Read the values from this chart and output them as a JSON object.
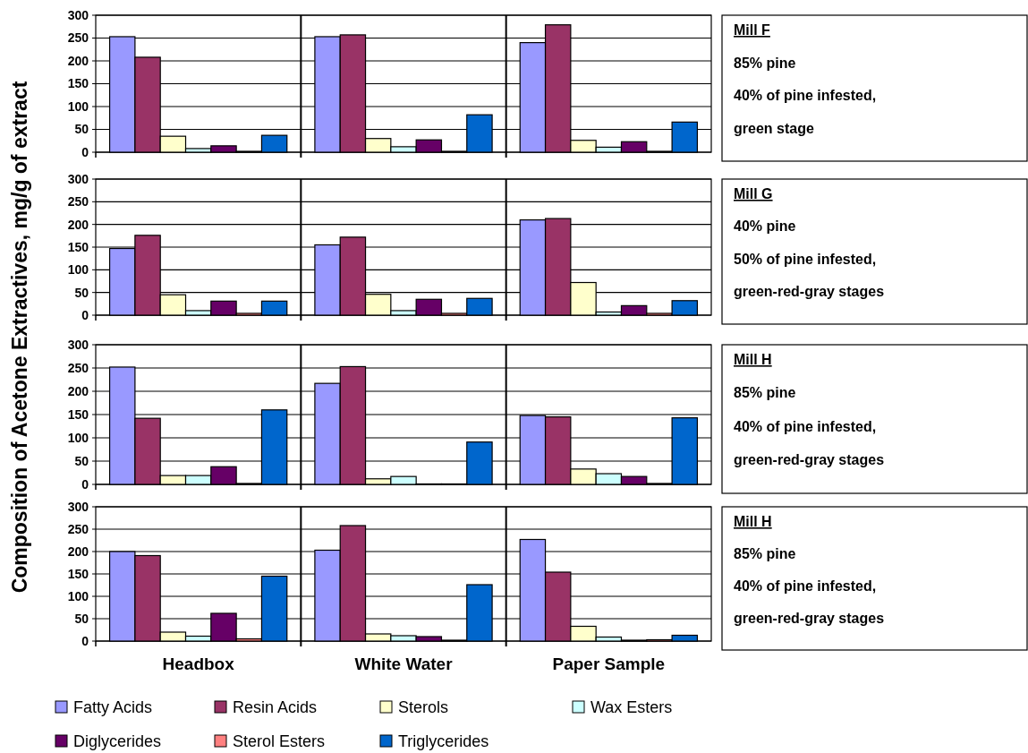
{
  "chart_data": [
    {
      "type": "bar",
      "ylabel": "Composition of Acetone Extractives, mg/g of extract",
      "categories": [
        null,
        null,
        null
      ],
      "tick_labels": "y",
      "ylim": [
        0,
        300
      ],
      "yticks": [
        0,
        50,
        100,
        150,
        200,
        250,
        300
      ],
      "grid": "y",
      "legend": false,
      "annotations": [
        "Mill F",
        "85% pine",
        "40% of pine infested,",
        "green stage"
      ],
      "series": [
        {
          "color": "#9999ff",
          "values": [
            253,
            253,
            240
          ]
        },
        {
          "color": "#993366",
          "values": [
            208,
            257,
            279
          ]
        },
        {
          "color": "#ffffcc",
          "values": [
            35,
            30,
            26
          ]
        },
        {
          "color": "#ccffff",
          "values": [
            8,
            12,
            11
          ]
        },
        {
          "color": "#660066",
          "values": [
            14,
            27,
            23
          ]
        },
        {
          "color": "#ff8080",
          "values": [
            2,
            2,
            2
          ]
        },
        {
          "color": "#0066cc",
          "values": [
            37,
            82,
            66
          ]
        }
      ]
    },
    {
      "type": "bar",
      "categories": [
        null,
        null,
        null
      ],
      "tick_labels": "y",
      "ylim": [
        0,
        300
      ],
      "yticks": [
        0,
        50,
        100,
        150,
        200,
        250,
        300
      ],
      "grid": "y",
      "legend": false,
      "annotations": [
        "Mill G",
        "40% pine",
        "50% of pine infested,",
        "green-red-gray stages"
      ],
      "series": [
        {
          "color": "#9999ff",
          "values": [
            147,
            155,
            210
          ]
        },
        {
          "color": "#993366",
          "values": [
            176,
            172,
            213
          ]
        },
        {
          "color": "#ffffcc",
          "values": [
            45,
            46,
            72
          ]
        },
        {
          "color": "#ccffff",
          "values": [
            10,
            10,
            7
          ]
        },
        {
          "color": "#660066",
          "values": [
            31,
            35,
            21
          ]
        },
        {
          "color": "#ff8080",
          "values": [
            4,
            4,
            4
          ]
        },
        {
          "color": "#0066cc",
          "values": [
            31,
            37,
            32
          ]
        }
      ]
    },
    {
      "type": "bar",
      "categories": [
        null,
        null,
        null
      ],
      "tick_labels": "y",
      "ylim": [
        0,
        300
      ],
      "yticks": [
        0,
        50,
        100,
        150,
        200,
        250,
        300
      ],
      "grid": "y",
      "legend": false,
      "annotations": [
        "Mill H",
        "85% pine",
        "40% of pine infested,",
        "green-red-gray stages"
      ],
      "series": [
        {
          "color": "#9999ff",
          "values": [
            252,
            217,
            148
          ]
        },
        {
          "color": "#993366",
          "values": [
            142,
            253,
            145
          ]
        },
        {
          "color": "#ffffcc",
          "values": [
            19,
            12,
            33
          ]
        },
        {
          "color": "#ccffff",
          "values": [
            19,
            17,
            23
          ]
        },
        {
          "color": "#660066",
          "values": [
            38,
            1,
            17
          ]
        },
        {
          "color": "#ff8080",
          "values": [
            2,
            1,
            2
          ]
        },
        {
          "color": "#0066cc",
          "values": [
            160,
            91,
            143
          ]
        }
      ]
    },
    {
      "type": "bar",
      "categories": [
        "Headbox",
        "White Water",
        "Paper Sample"
      ],
      "ylim": [
        0,
        300
      ],
      "yticks": [
        0,
        50,
        100,
        150,
        200,
        250,
        300
      ],
      "grid": "y",
      "legend": "bottom",
      "annotations": [
        "Mill H",
        "85% pine",
        "40% of pine infested,",
        "green-red-gray stages"
      ],
      "series": [
        {
          "name": "Fatty Acids",
          "color": "#9999ff",
          "values": [
            200,
            203,
            227
          ]
        },
        {
          "name": "Resin Acids",
          "color": "#993366",
          "values": [
            191,
            258,
            154
          ]
        },
        {
          "name": "Sterols",
          "color": "#ffffcc",
          "values": [
            20,
            16,
            33
          ]
        },
        {
          "name": "Wax Esters",
          "color": "#ccffff",
          "values": [
            11,
            12,
            9
          ]
        },
        {
          "name": "Diglycerides",
          "color": "#660066",
          "values": [
            62,
            10,
            2
          ]
        },
        {
          "name": "Sterol Esters",
          "color": "#ff8080",
          "values": [
            5,
            2,
            3
          ]
        },
        {
          "name": "Triglycerides",
          "color": "#0066cc",
          "values": [
            145,
            126,
            13
          ]
        }
      ]
    }
  ]
}
